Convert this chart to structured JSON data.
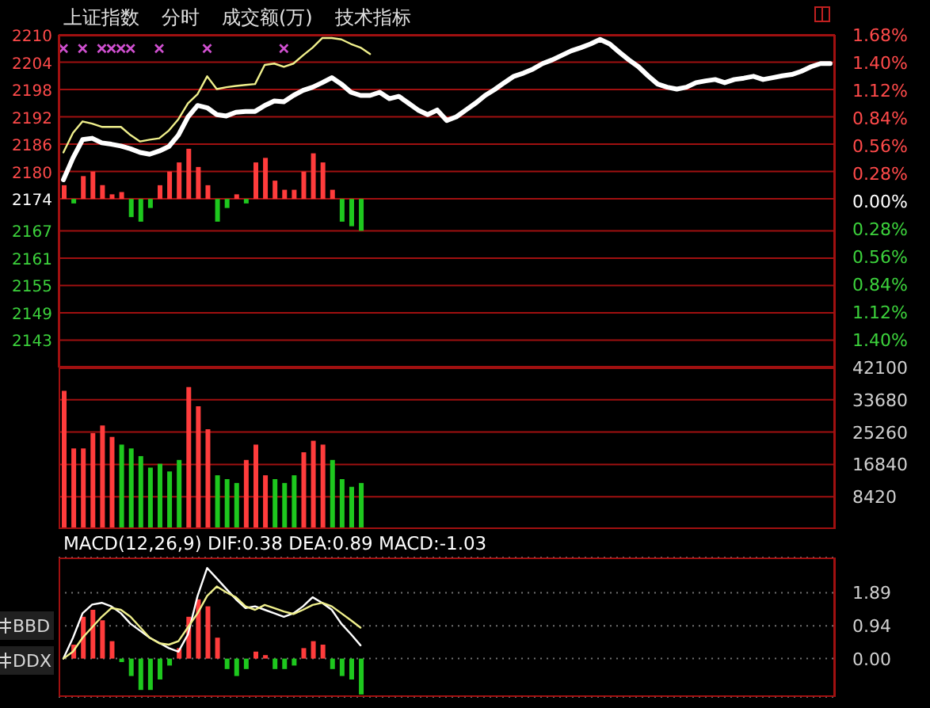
{
  "chart_data": [
    {
      "type": "line",
      "title": "上证指数",
      "annotations": [
        "分时",
        "成交额(万)",
        "技术指标"
      ],
      "categories": [
        null,
        null,
        null,
        null,
        null,
        null,
        null,
        null,
        null,
        null,
        null,
        null,
        null,
        null,
        null,
        null,
        null,
        null,
        null,
        null,
        null,
        null,
        null,
        null,
        null,
        null,
        null,
        null,
        null,
        null,
        null,
        null,
        null,
        null,
        null,
        null,
        null,
        null,
        null,
        null,
        null,
        null,
        null,
        null,
        null,
        null,
        null,
        null,
        null,
        null,
        null,
        null,
        null,
        null,
        null,
        null,
        null,
        null,
        null,
        null,
        null,
        null,
        null,
        null,
        null,
        null,
        null,
        null,
        null,
        null,
        null,
        null,
        null,
        null,
        null,
        null,
        null,
        null,
        null,
        null,
        null
      ],
      "ylim": [
        2137,
        2210
      ],
      "yticks": [
        2143,
        2149,
        2155,
        2161,
        2167,
        2174,
        2180,
        2186,
        2192,
        2198,
        2204,
        2210
      ],
      "y2lim": [
        -1.68,
        1.68
      ],
      "y2ticks": [
        {
          "value": -1.4,
          "label": "1.40%"
        },
        {
          "value": -1.12,
          "label": "1.12%"
        },
        {
          "value": -0.84,
          "label": "0.84%"
        },
        {
          "value": -0.56,
          "label": "0.56%"
        },
        {
          "value": -0.28,
          "label": "0.28%"
        },
        {
          "value": 0,
          "label": "0.00%"
        },
        {
          "value": 0.28,
          "label": "0.28%"
        },
        {
          "value": 0.56,
          "label": "0.56%"
        },
        {
          "value": 0.84,
          "label": "0.84%"
        },
        {
          "value": 1.12,
          "label": "1.12%"
        },
        {
          "value": 1.4,
          "label": "1.40%"
        },
        {
          "value": 1.68,
          "label": "1.68%"
        }
      ],
      "grid": "y",
      "series": [
        {
          "type": "bar",
          "base": [
            2174,
            2174,
            2174,
            2174,
            2174,
            2174,
            2174,
            2174,
            2174,
            2174,
            2174,
            2174,
            2174,
            2174,
            2174,
            2174,
            2174,
            2174,
            2174,
            2174,
            2174,
            2174,
            2174,
            2174,
            2174,
            2174,
            2174,
            2174,
            2174,
            2174,
            2174,
            2174,
            null,
            null,
            null,
            null,
            null,
            null,
            null,
            null,
            null,
            null,
            null,
            null,
            null,
            null,
            null,
            null,
            null,
            null,
            null,
            null,
            null,
            null,
            null,
            null,
            null,
            null,
            null,
            null,
            null,
            null,
            null,
            null,
            null,
            null,
            null,
            null,
            null,
            null,
            null,
            null,
            null,
            null,
            null,
            null,
            null,
            null,
            null,
            null,
            null
          ],
          "values": [
            3,
            -1,
            5,
            6,
            3,
            1,
            1.5,
            -4,
            -5,
            -2,
            3,
            6,
            8,
            11,
            7,
            3,
            -5,
            -2,
            1,
            -1,
            8,
            9,
            4,
            2,
            2,
            6,
            10,
            8,
            2,
            -5,
            -6,
            -7,
            null,
            null,
            null,
            null,
            null,
            null,
            null,
            null,
            null,
            null,
            null,
            null,
            null,
            null,
            null,
            null,
            null,
            null,
            null,
            null,
            null,
            null,
            null,
            null,
            null,
            null,
            null,
            null,
            null,
            null,
            null,
            null,
            null,
            null,
            null,
            null,
            null,
            null,
            null,
            null,
            null,
            null,
            null,
            null,
            null,
            null,
            null,
            null,
            null
          ],
          "colors": [
            "#ff3c3c",
            "#1ec81e",
            "#ff3c3c",
            "#ff3c3c",
            "#ff3c3c",
            "#ff3c3c",
            "#ff3c3c",
            "#1ec81e",
            "#1ec81e",
            "#1ec81e",
            "#ff3c3c",
            "#ff3c3c",
            "#ff3c3c",
            "#ff3c3c",
            "#ff3c3c",
            "#ff3c3c",
            "#1ec81e",
            "#1ec81e",
            "#ff3c3c",
            "#1ec81e",
            "#ff3c3c",
            "#ff3c3c",
            "#ff3c3c",
            "#ff3c3c",
            "#ff3c3c",
            "#ff3c3c",
            "#ff3c3c",
            "#ff3c3c",
            "#ff3c3c",
            "#1ec81e",
            "#1ec81e",
            "#1ec81e",
            null,
            null,
            null,
            null,
            null,
            null,
            null,
            null,
            null,
            null,
            null,
            null,
            null,
            null,
            null,
            null,
            null,
            null,
            null,
            null,
            null,
            null,
            null,
            null,
            null,
            null,
            null,
            null,
            null,
            null,
            null,
            null,
            null,
            null,
            null,
            null,
            null,
            null,
            null,
            null,
            null,
            null,
            null,
            null,
            null,
            null,
            null,
            null,
            null
          ]
        },
        {
          "color": "#f0f08c",
          "values": [
            2184.2,
            2188.5,
            2191.0,
            2190.5,
            2189.8,
            2189.8,
            2189.8,
            2188,
            2186.6,
            2187,
            2187.3,
            2189,
            2191.5,
            2195,
            2197,
            2200.9,
            2198.1,
            2198.5,
            2198.8,
            2199,
            2199.2,
            2203.4,
            2203.7,
            2203.0,
            2203.7,
            2205.5,
            2207.2,
            2209.3,
            2209.3,
            2209,
            2208,
            2207.2,
            2205.8,
            null,
            null,
            null,
            null,
            null,
            null,
            null,
            null,
            null,
            null,
            null,
            null,
            null,
            null,
            null,
            null,
            null,
            null,
            null,
            null,
            null,
            null,
            null,
            null,
            null,
            null,
            null,
            null,
            null,
            null,
            null,
            null,
            null,
            null,
            null,
            null,
            null,
            null,
            null,
            null,
            null,
            null,
            null,
            null,
            null,
            null,
            null,
            null
          ]
        },
        {
          "color": "#ffffff",
          "values": [
            2178.2,
            2183,
            2187.0,
            2187.3,
            2186.3,
            2186,
            2185.6,
            2185,
            2184.2,
            2183.8,
            2184.5,
            2185.5,
            2188.0,
            2192,
            2194.5,
            2194,
            2192.5,
            2192.2,
            2193.0,
            2193.2,
            2193.2,
            2194.5,
            2195.5,
            2195.3,
            2196.7,
            2197.8,
            2198.5,
            2199.5,
            2200.6,
            2199.2,
            2197.4,
            2196.7,
            2196.7,
            2197.4,
            2196.0,
            2196.5,
            2195.0,
            2193.5,
            2192.5,
            2193.5,
            2191.2,
            2192,
            2193.5,
            2195,
            2196.7,
            2198,
            2199.5,
            2200.9,
            2201.6,
            2202.5,
            2203.7,
            2204.5,
            2205.5,
            2206.5,
            2207.2,
            2208,
            2209.0,
            2208,
            2206.2,
            2204.5,
            2203.0,
            2201,
            2199.2,
            2198.5,
            2198.1,
            2198.5,
            2199.5,
            2199.9,
            2200.2,
            2199.5,
            2200.2,
            2200.5,
            2200.9,
            2200.2,
            2200.6,
            2201,
            2201.3,
            2202,
            2203.0,
            2203.7,
            2203.7
          ]
        },
        {
          "type": "scatter",
          "marker": "cross",
          "color": "#d050d0",
          "values": [
            2207,
            null,
            2207,
            null,
            2207,
            2207,
            2207,
            2207,
            null,
            null,
            2207,
            null,
            null,
            null,
            null,
            2207,
            null,
            null,
            null,
            null,
            null,
            null,
            null,
            2207,
            null,
            null,
            null,
            null,
            null,
            null,
            null,
            null,
            null,
            null,
            null,
            null,
            null,
            null,
            null,
            null,
            null,
            null,
            null,
            null,
            null,
            null,
            null,
            null,
            null,
            null,
            null,
            null,
            null,
            null,
            null,
            null,
            null,
            null,
            null,
            null,
            null,
            null,
            null,
            null,
            null,
            null,
            null,
            null,
            null,
            null,
            null,
            null,
            null,
            null,
            null,
            null,
            null,
            null,
            null,
            null,
            null
          ]
        }
      ]
    },
    {
      "type": "bar",
      "categories": [
        null,
        null,
        null,
        null,
        null,
        null,
        null,
        null,
        null,
        null,
        null,
        null,
        null,
        null,
        null,
        null,
        null,
        null,
        null,
        null,
        null,
        null,
        null,
        null,
        null,
        null,
        null,
        null,
        null,
        null,
        null,
        null,
        null,
        null,
        null,
        null,
        null,
        null,
        null,
        null,
        null,
        null,
        null,
        null,
        null,
        null,
        null,
        null,
        null,
        null,
        null,
        null,
        null,
        null,
        null,
        null,
        null,
        null,
        null,
        null,
        null,
        null,
        null,
        null,
        null,
        null,
        null,
        null,
        null,
        null,
        null,
        null,
        null,
        null,
        null,
        null,
        null,
        null,
        null,
        null,
        null
      ],
      "values": [
        36000,
        21000,
        21000,
        25000,
        27000,
        24000,
        22000,
        21000,
        19000,
        16000,
        17000,
        15000,
        18000,
        37000,
        32000,
        26000,
        14000,
        13000,
        12000,
        18000,
        22000,
        14000,
        13000,
        12000,
        14000,
        20000,
        23000,
        22000,
        18000,
        13000,
        11000,
        12000,
        null,
        null,
        null,
        null,
        null,
        null,
        null,
        null,
        null,
        null,
        null,
        null,
        null,
        null,
        null,
        null,
        null,
        null,
        null,
        null,
        null,
        null,
        null,
        null,
        null,
        null,
        null,
        null,
        null,
        null,
        null,
        null,
        null,
        null,
        null,
        null,
        null,
        null,
        null,
        null,
        null,
        null,
        null,
        null,
        null,
        null,
        null,
        null,
        null
      ],
      "colors": [
        "#ff3c3c",
        "#ff3c3c",
        "#ff3c3c",
        "#ff3c3c",
        "#ff3c3c",
        "#ff3c3c",
        "#1ec81e",
        "#1ec81e",
        "#1ec81e",
        "#1ec81e",
        "#1ec81e",
        "#1ec81e",
        "#1ec81e",
        "#ff3c3c",
        "#ff3c3c",
        "#ff3c3c",
        "#1ec81e",
        "#1ec81e",
        "#1ec81e",
        "#ff3c3c",
        "#ff3c3c",
        "#ff3c3c",
        "#1ec81e",
        "#1ec81e",
        "#1ec81e",
        "#ff3c3c",
        "#ff3c3c",
        "#ff3c3c",
        "#1ec81e",
        "#1ec81e",
        "#1ec81e",
        "#1ec81e",
        null,
        null,
        null,
        null,
        null,
        null,
        null,
        null,
        null,
        null,
        null,
        null,
        null,
        null,
        null,
        null,
        null,
        null,
        null,
        null,
        null,
        null,
        null,
        null,
        null,
        null,
        null,
        null,
        null,
        null,
        null,
        null,
        null,
        null,
        null,
        null,
        null,
        null,
        null,
        null,
        null,
        null,
        null,
        null,
        null,
        null,
        null,
        null,
        null
      ],
      "ylim": [
        0,
        42100
      ],
      "yticks": [
        8420,
        16840,
        25260,
        33680,
        42100
      ],
      "grid": "y"
    },
    {
      "type": "bar",
      "title": "MACD(12,26,9) DIF:0.38 DEA:0.89 MACD:-1.03",
      "annotations": [
        "BBD",
        "DDX"
      ],
      "categories": [
        null,
        null,
        null,
        null,
        null,
        null,
        null,
        null,
        null,
        null,
        null,
        null,
        null,
        null,
        null,
        null,
        null,
        null,
        null,
        null,
        null,
        null,
        null,
        null,
        null,
        null,
        null,
        null,
        null,
        null,
        null,
        null,
        null,
        null,
        null,
        null,
        null,
        null,
        null,
        null,
        null,
        null,
        null,
        null,
        null,
        null,
        null,
        null,
        null,
        null,
        null,
        null,
        null,
        null,
        null,
        null,
        null,
        null,
        null,
        null,
        null,
        null,
        null,
        null,
        null,
        null,
        null,
        null,
        null,
        null,
        null,
        null,
        null,
        null,
        null,
        null,
        null,
        null,
        null,
        null,
        null
      ],
      "ylim": [
        -1.1,
        2.9
      ],
      "yticks": [
        {
          "value": 0,
          "label": "0.00"
        },
        {
          "value": 0.94,
          "label": "0.94"
        },
        {
          "value": 1.89,
          "label": "1.89"
        }
      ],
      "grid": "y",
      "series": [
        {
          "values": [
            0,
            0.4,
            1.2,
            1.4,
            1.1,
            0.5,
            -0.1,
            -0.5,
            -0.9,
            -0.9,
            -0.6,
            -0.2,
            0.3,
            1.2,
            1.7,
            1.5,
            0.6,
            -0.3,
            -0.5,
            -0.3,
            0.2,
            0.1,
            -0.3,
            -0.3,
            -0.2,
            0.3,
            0.5,
            0.4,
            -0.3,
            -0.5,
            -0.6,
            -1.03,
            null,
            null,
            null,
            null,
            null,
            null,
            null,
            null,
            null,
            null,
            null,
            null,
            null,
            null,
            null,
            null,
            null,
            null,
            null,
            null,
            null,
            null,
            null,
            null,
            null,
            null,
            null,
            null,
            null,
            null,
            null,
            null,
            null,
            null,
            null,
            null,
            null,
            null,
            null,
            null,
            null,
            null,
            null,
            null,
            null,
            null,
            null,
            null,
            null
          ],
          "colors": [
            "#ff3c3c",
            "#ff3c3c",
            "#ff3c3c",
            "#ff3c3c",
            "#ff3c3c",
            "#ff3c3c",
            "#1ec81e",
            "#1ec81e",
            "#1ec81e",
            "#1ec81e",
            "#1ec81e",
            "#1ec81e",
            "#ff3c3c",
            "#ff3c3c",
            "#ff3c3c",
            "#ff3c3c",
            "#ff3c3c",
            "#1ec81e",
            "#1ec81e",
            "#1ec81e",
            "#ff3c3c",
            "#ff3c3c",
            "#1ec81e",
            "#1ec81e",
            "#1ec81e",
            "#ff3c3c",
            "#ff3c3c",
            "#ff3c3c",
            "#1ec81e",
            "#1ec81e",
            "#1ec81e",
            "#1ec81e",
            null,
            null,
            null,
            null,
            null,
            null,
            null,
            null,
            null,
            null,
            null,
            null,
            null,
            null,
            null,
            null,
            null,
            null,
            null,
            null,
            null,
            null,
            null,
            null,
            null,
            null,
            null,
            null,
            null,
            null,
            null,
            null,
            null,
            null,
            null,
            null,
            null,
            null,
            null,
            null,
            null,
            null,
            null,
            null,
            null,
            null,
            null,
            null,
            null
          ]
        },
        {
          "type": "line",
          "color": "#ffffff",
          "values": [
            0,
            0.6,
            1.3,
            1.55,
            1.6,
            1.5,
            1.3,
            1.0,
            0.8,
            0.6,
            0.45,
            0.3,
            0.2,
            0.7,
            1.8,
            2.6,
            2.3,
            2.0,
            1.7,
            1.45,
            1.5,
            1.4,
            1.3,
            1.2,
            1.3,
            1.5,
            1.76,
            1.6,
            1.4,
            1.0,
            0.7,
            0.38,
            null,
            null,
            null,
            null,
            null,
            null,
            null,
            null,
            null,
            null,
            null,
            null,
            null,
            null,
            null,
            null,
            null,
            null,
            null,
            null,
            null,
            null,
            null,
            null,
            null,
            null,
            null,
            null,
            null,
            null,
            null,
            null,
            null,
            null,
            null,
            null,
            null,
            null,
            null,
            null,
            null,
            null,
            null,
            null,
            null,
            null,
            null,
            null,
            null
          ]
        },
        {
          "type": "line",
          "color": "#f0f08c",
          "values": [
            0,
            0.2,
            0.6,
            0.9,
            1.2,
            1.45,
            1.4,
            1.2,
            0.9,
            0.6,
            0.44,
            0.4,
            0.5,
            0.9,
            1.3,
            1.8,
            2.07,
            1.9,
            1.76,
            1.5,
            1.4,
            1.54,
            1.45,
            1.35,
            1.28,
            1.4,
            1.54,
            1.6,
            1.5,
            1.3,
            1.1,
            0.89,
            null,
            null,
            null,
            null,
            null,
            null,
            null,
            null,
            null,
            null,
            null,
            null,
            null,
            null,
            null,
            null,
            null,
            null,
            null,
            null,
            null,
            null,
            null,
            null,
            null,
            null,
            null,
            null,
            null,
            null,
            null,
            null,
            null,
            null,
            null,
            null,
            null,
            null,
            null,
            null,
            null,
            null,
            null,
            null,
            null,
            null,
            null,
            null,
            null
          ]
        }
      ]
    }
  ]
}
